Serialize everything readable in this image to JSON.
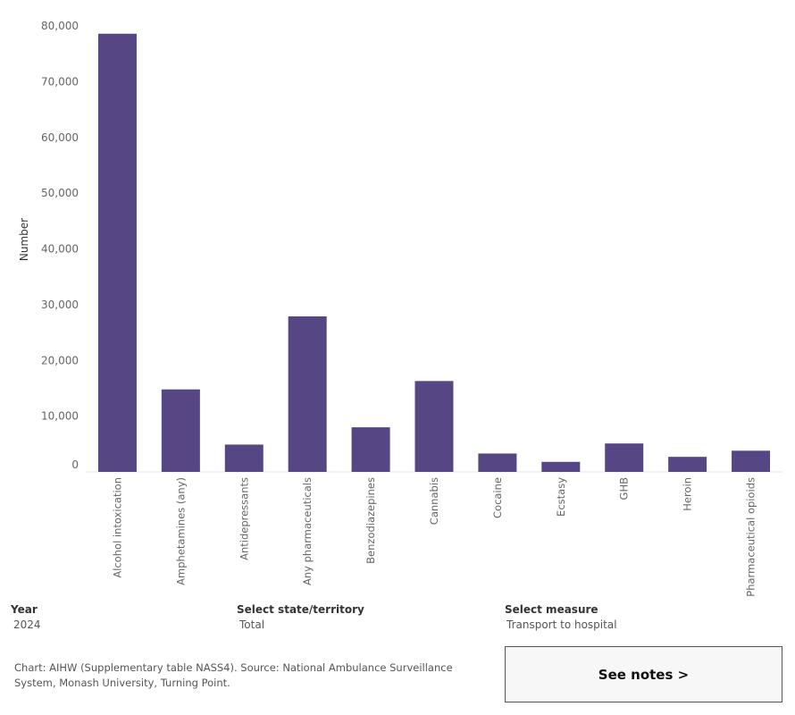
{
  "chart_data": {
    "type": "bar",
    "ylabel": "Number",
    "xlabel": "",
    "ylim": [
      0,
      80000
    ],
    "yticks": [
      0,
      10000,
      20000,
      30000,
      40000,
      50000,
      60000,
      70000,
      80000
    ],
    "ytick_labels": [
      "0",
      "10,000",
      "20,000",
      "30,000",
      "40,000",
      "50,000",
      "60,000",
      "70,000",
      "80,000"
    ],
    "categories": [
      "Alcohol intoxication",
      "Amphetamines (any)",
      "Antidepressants",
      "Any pharmaceuticals",
      "Benzodiazepines",
      "Cannabis",
      "Cocaine",
      "Ecstasy",
      "GHB",
      "Heroin",
      "Pharmaceutical opioids"
    ],
    "values": [
      78600,
      14800,
      4900,
      27900,
      8000,
      16300,
      3300,
      1800,
      5100,
      2700,
      3800
    ],
    "bar_color": "#574684",
    "grid": false
  },
  "filters": {
    "year": {
      "label": "Year",
      "value": "2024"
    },
    "state": {
      "label": "Select state/territory",
      "value": "Total"
    },
    "measure": {
      "label": "Select measure",
      "value": "Transport to hospital"
    }
  },
  "footnote": "Chart: AIHW (Supplementary table NASS4). Source: National Ambulance Surveillance System, Monash University, Turning Point.",
  "notes_button": "See notes >"
}
